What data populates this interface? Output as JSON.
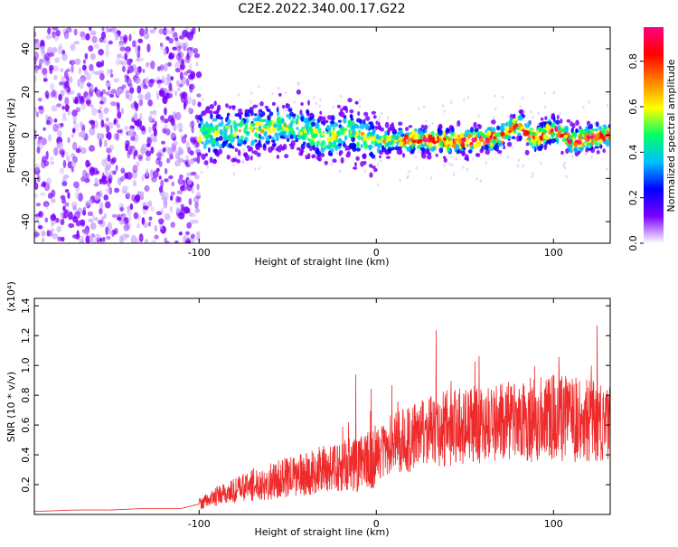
{
  "page": {
    "title": "C2E2.2022.340.00.17.G22"
  },
  "chart_data": [
    {
      "type": "heatmap",
      "title": "C2E2.2022.340.00.17.G22",
      "xlabel": "Height of straight line (km)",
      "ylabel": "Frequency (Hz)",
      "xlim": [
        -193,
        132
      ],
      "ylim": [
        -50,
        50
      ],
      "x_ticks": [
        -100,
        0,
        100
      ],
      "y_ticks": [
        -40,
        -20,
        0,
        20,
        40
      ],
      "grid": false,
      "colorbar": {
        "label": "Normalized spectral amplitude",
        "range": [
          0.0,
          0.95
        ],
        "ticks": [
          0.0,
          0.2,
          0.4,
          0.6,
          0.8
        ],
        "colormap": [
          "#ffffff",
          "#7b00ff",
          "#0000ff",
          "#00bfff",
          "#00ff66",
          "#ffff00",
          "#ff8000",
          "#ff0000",
          "#ff007f"
        ]
      },
      "ridge": {
        "x": [
          -100,
          -80,
          -60,
          -45,
          -30,
          -15,
          0,
          20,
          40,
          60,
          70,
          80,
          90,
          100,
          110,
          120,
          132
        ],
        "y": [
          0,
          2,
          3,
          5,
          -2,
          2,
          -3,
          -2,
          -3,
          -2,
          -1,
          5,
          -2,
          3,
          -3,
          -1,
          0
        ]
      }
    },
    {
      "type": "line",
      "xlabel": "Height of straight line (km)",
      "ylabel": "SNR (10 * v/v)",
      "y_scale_label": "(x10⁴)",
      "xlim": [
        -193,
        132
      ],
      "ylim": [
        0,
        1.45
      ],
      "x_ticks": [
        -100,
        0,
        100
      ],
      "y_ticks": [
        0.2,
        0.4,
        0.6,
        0.8,
        1.0,
        1.2,
        1.4
      ],
      "grid": false,
      "series": [
        {
          "color": "#ee2a2a",
          "x": [
            -193,
            -170,
            -150,
            -130,
            -110,
            -100,
            -90,
            -80,
            -70,
            -60,
            -50,
            -40,
            -30,
            -20,
            -10,
            -5,
            0,
            10,
            20,
            30,
            40,
            50,
            60,
            70,
            80,
            90,
            100,
            110,
            120,
            132
          ],
          "y": [
            0.02,
            0.03,
            0.03,
            0.04,
            0.04,
            0.07,
            0.12,
            0.16,
            0.2,
            0.22,
            0.25,
            0.27,
            0.3,
            0.32,
            0.34,
            0.36,
            0.4,
            0.48,
            0.52,
            0.55,
            0.58,
            0.6,
            0.6,
            0.62,
            0.62,
            0.64,
            0.66,
            0.64,
            0.62,
            0.6
          ]
        }
      ]
    }
  ]
}
